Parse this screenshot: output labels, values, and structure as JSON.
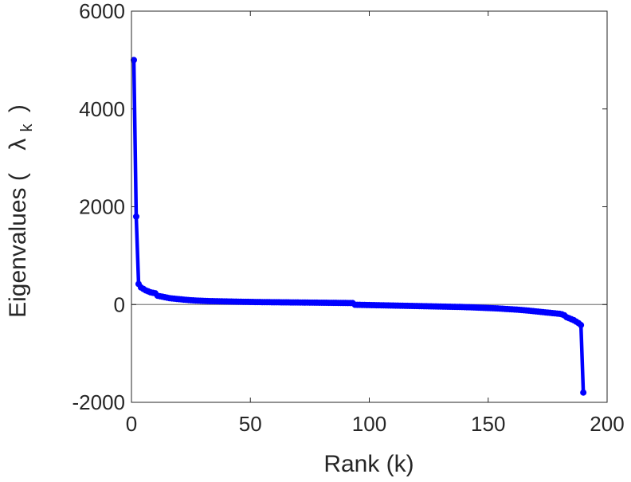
{
  "chart_data": {
    "type": "line",
    "title": "",
    "xlabel": "Rank (k)",
    "ylabel_main": "Eigenvalues (",
    "ylabel_symbol": "λ",
    "ylabel_sub": "k",
    "ylabel_close": ")",
    "xlim": [
      0,
      200
    ],
    "ylim": [
      -2000,
      6000
    ],
    "xticks": [
      "0",
      "50",
      "100",
      "150",
      "200"
    ],
    "yticks": [
      "-2000",
      "0",
      "2000",
      "4000",
      "6000"
    ],
    "grid": false,
    "zero_line": true,
    "series_color": "#0000ff",
    "series": [
      {
        "name": "eigenvalues",
        "x_start": 1,
        "values": [
          5000,
          1800,
          420,
          350,
          320,
          290,
          270,
          250,
          240,
          230,
          180,
          170,
          160,
          150,
          140,
          130,
          125,
          120,
          115,
          110,
          105,
          100,
          96,
          92,
          88,
          85,
          82,
          80,
          78,
          76,
          74,
          72,
          70,
          69,
          68,
          67,
          66,
          65,
          64,
          63,
          62,
          61,
          60,
          59,
          58,
          57,
          56,
          55,
          54,
          53,
          52,
          51,
          50,
          50,
          49,
          49,
          48,
          48,
          47,
          47,
          46,
          46,
          45,
          45,
          44,
          44,
          43,
          43,
          42,
          42,
          41,
          41,
          40,
          40,
          39,
          39,
          38,
          38,
          37,
          37,
          36,
          36,
          35,
          35,
          34,
          34,
          33,
          33,
          32,
          32,
          31,
          31,
          30,
          -5,
          -6,
          -7,
          -8,
          -9,
          -10,
          -11,
          -12,
          -13,
          -14,
          -15,
          -16,
          -17,
          -18,
          -19,
          -20,
          -21,
          -22,
          -23,
          -24,
          -25,
          -26,
          -27,
          -28,
          -29,
          -30,
          -31,
          -32,
          -33,
          -34,
          -35,
          -36,
          -37,
          -38,
          -39,
          -40,
          -41,
          -42,
          -43,
          -44,
          -45,
          -46,
          -47,
          -48,
          -49,
          -50,
          -52,
          -54,
          -56,
          -58,
          -60,
          -62,
          -64,
          -66,
          -68,
          -70,
          -72,
          -74,
          -76,
          -78,
          -80,
          -83,
          -86,
          -89,
          -92,
          -95,
          -98,
          -101,
          -104,
          -108,
          -112,
          -116,
          -120,
          -125,
          -130,
          -135,
          -140,
          -145,
          -150,
          -155,
          -160,
          -165,
          -170,
          -175,
          -180,
          -185,
          -190,
          -200,
          -220,
          -260,
          -280,
          -300,
          -320,
          -350,
          -380,
          -420,
          -1800
        ]
      }
    ]
  }
}
